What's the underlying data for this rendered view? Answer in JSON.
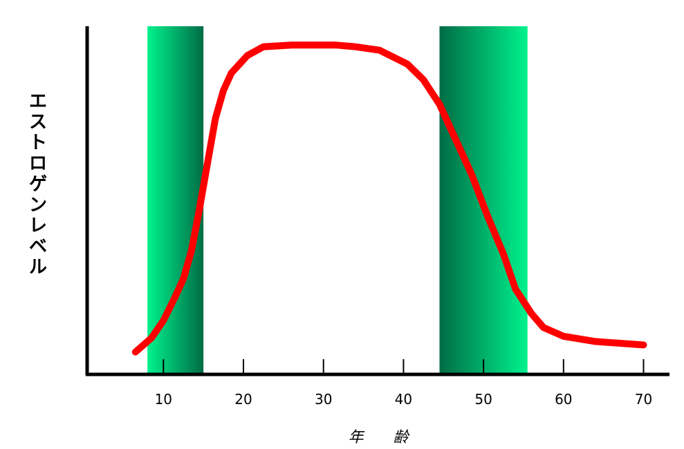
{
  "chart_data": {
    "type": "line",
    "title": "",
    "xlabel": "年 齢",
    "ylabel": "エストロゲンレベル",
    "xticks": [
      10,
      20,
      30,
      40,
      50,
      60,
      70
    ],
    "xlim": [
      0,
      73
    ],
    "grid": false,
    "series": [
      {
        "color": "#ff0000",
        "x": [
          6.5,
          8.5,
          10,
          11.5,
          12.5,
          13.5,
          14.5,
          15.5,
          16.5,
          17.5,
          18.5,
          20.5,
          22.5,
          26,
          31.5,
          34,
          37,
          40.5,
          42.5,
          44.5,
          46.5,
          48.5,
          50.5,
          52.5,
          54,
          56,
          57.5,
          60,
          64,
          70
        ],
        "y": [
          0.09,
          0.13,
          0.18,
          0.25,
          0.3,
          0.38,
          0.5,
          0.63,
          0.76,
          0.84,
          0.89,
          0.94,
          0.965,
          0.97,
          0.97,
          0.965,
          0.955,
          0.915,
          0.87,
          0.8,
          0.7,
          0.6,
          0.48,
          0.37,
          0.27,
          0.2,
          0.16,
          0.135,
          0.12,
          0.11
        ]
      }
    ],
    "highlight_bands": [
      {
        "start": 8,
        "end": 15,
        "gradient": "light-to-dark",
        "colors": [
          "#00f28d",
          "#006c45"
        ]
      },
      {
        "start": 44.5,
        "end": 55.5,
        "gradient": "dark-to-light",
        "colors": [
          "#006c45",
          "#00f28d"
        ]
      }
    ]
  }
}
